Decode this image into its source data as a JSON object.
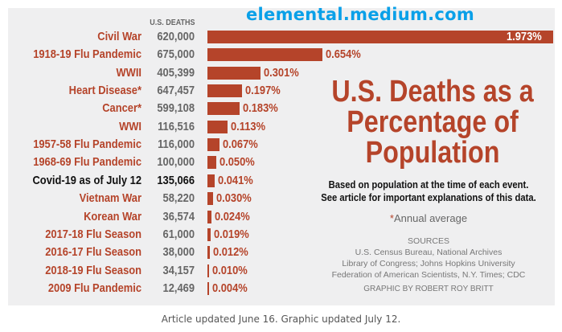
{
  "watermark": "elemental.medium.com",
  "chart_data": {
    "type": "bar",
    "orientation": "horizontal",
    "title": "U.S. Deaths as a Percentage of Population",
    "subtitle": "Based on population at the time of each event. See article for important explanations of this data.",
    "column_header": "U.S. DEATHS",
    "categories": [
      "Civil War",
      "1918-19 Flu Pandemic",
      "WWII",
      "Heart Disease*",
      "Cancer*",
      "WWI",
      "1957-58 Flu Pandemic",
      "1968-69 Flu Pandemic",
      "Covid-19 as of July 12",
      "Vietnam War",
      "Korean War",
      "2017-18 Flu Season",
      "2016-17 Flu Season",
      "2018-19 Flu Season",
      "2009 Flu Pandemic"
    ],
    "deaths": [
      "620,000",
      "675,000",
      "405,399",
      "647,457",
      "599,108",
      "116,516",
      "116,000",
      "100,000",
      "135,066",
      "58,220",
      "36,574",
      "61,000",
      "38,000",
      "34,157",
      "12,469"
    ],
    "values": [
      1.973,
      0.654,
      0.301,
      0.197,
      0.183,
      0.113,
      0.067,
      0.05,
      0.041,
      0.03,
      0.024,
      0.019,
      0.012,
      0.01,
      0.004
    ],
    "value_labels": [
      "1.973%",
      "0.654%",
      "0.301%",
      "0.197%",
      "0.183%",
      "0.113%",
      "0.067%",
      "0.050%",
      "0.041%",
      "0.030%",
      "0.024%",
      "0.019%",
      "0.012%",
      "0.010%",
      "0.004%"
    ],
    "highlight_index": 8,
    "colors": {
      "bar": "#b5442a",
      "label": "#b5442a",
      "highlight": "#111111",
      "background": "#efeff0"
    }
  },
  "title_lines": [
    "U.S. Deaths as a",
    "Percentage of",
    "Population"
  ],
  "subtitle_lines": [
    "Based on population at the time of each event.",
    "See article for important explanations of this data."
  ],
  "note_star": "*",
  "note": "Annual average",
  "sources_heading": "SOURCES",
  "sources": [
    "U.S. Census Bureau, National Archives",
    "Library of Congress; Johns Hopkins University",
    "Federation of American Scientists, N.Y. Times; CDC"
  ],
  "credit": "GRAPHIC BY ROBERT ROY BRITT",
  "caption": "Article updated June 16. Graphic updated July 12."
}
